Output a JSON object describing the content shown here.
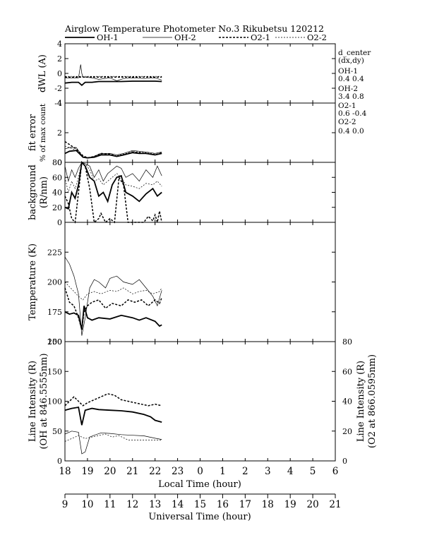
{
  "chart_data": {
    "type": "line",
    "title": "Airglow Temperature Photometer No.3  Rikubetsu    120212",
    "legend": [
      {
        "name": "OH-1",
        "color": "#000000",
        "style": "solid-thick"
      },
      {
        "name": "OH-2",
        "color": "#000000",
        "style": "solid-thin"
      },
      {
        "name": "O2-1",
        "color": "#000000",
        "style": "dashed-thick"
      },
      {
        "name": "O2-2",
        "color": "#000000",
        "style": "dashed-thin"
      }
    ],
    "x_axis": {
      "label": "Local Time (hour)",
      "range": [
        18,
        30
      ],
      "tick_labels": [
        "18",
        "19",
        "20",
        "21",
        "22",
        "23",
        "0",
        "1",
        "2",
        "3",
        "4",
        "5",
        "6"
      ]
    },
    "x2_axis": {
      "label": "Universal Time (hour)",
      "tick_labels": [
        "9",
        "10",
        "11",
        "12",
        "13",
        "14",
        "15",
        "16",
        "17",
        "18",
        "19",
        "20",
        "21"
      ]
    },
    "d_center": {
      "title": "d_center",
      "subtitle": "(dx,dy)",
      "items": [
        {
          "name": "OH-1",
          "value": "0.4   0.4"
        },
        {
          "name": "OH-2",
          "value": "3.4   0.8"
        },
        {
          "name": "O2-1",
          "value": "0.6   -0.4"
        },
        {
          "name": "O2-2",
          "value": "0.4   0.0"
        }
      ]
    },
    "panels": [
      {
        "id": "dwl",
        "ylabel": "dWL (A)",
        "ylim": [
          -4,
          4
        ],
        "yticks": [
          "4",
          "2",
          "0",
          "-2",
          "-4"
        ],
        "series": [
          {
            "name": "OH-1",
            "x": [
              18,
              18.3,
              18.6,
              18.75,
              18.9,
              19.2,
              19.5,
              20,
              20.5,
              21,
              21.5,
              22,
              22.3
            ],
            "y": [
              -1.3,
              -1.2,
              -1.2,
              -1.6,
              -1.2,
              -1.2,
              -1.1,
              -1.1,
              -1.1,
              -1.05,
              -1.05,
              -1.05,
              -1.1
            ]
          },
          {
            "name": "OH-2",
            "x": [
              18,
              18.3,
              18.6,
              18.7,
              18.75,
              18.8,
              18.9,
              19.2,
              19.5,
              20,
              20.3,
              20.6,
              21,
              21.5,
              22,
              22.3
            ],
            "y": [
              -0.6,
              -0.6,
              -0.6,
              1.2,
              0,
              -0.5,
              -0.5,
              -0.6,
              -0.8,
              -0.6,
              -1.0,
              -0.7,
              -0.6,
              -0.7,
              -0.6,
              -0.9
            ]
          },
          {
            "name": "O2-1",
            "x": [
              18,
              19,
              20,
              21,
              22,
              22.3
            ],
            "y": [
              -0.5,
              -0.5,
              -0.5,
              -0.5,
              -0.5,
              -0.5
            ]
          },
          {
            "name": "O2-2",
            "x": [
              18,
              19,
              20,
              21,
              22,
              22.3
            ],
            "y": [
              -0.4,
              -0.4,
              -0.4,
              -0.4,
              -0.4,
              -0.4
            ]
          }
        ]
      },
      {
        "id": "fit",
        "ylabel": "fit error",
        "ylabel2": "% of max count",
        "ylim": [
          0,
          4
        ],
        "yticks": [
          "4",
          "2",
          "0"
        ],
        "series": [
          {
            "name": "OH-1",
            "x": [
              18,
              18.2,
              18.5,
              18.8,
              19,
              19.3,
              19.6,
              20,
              20.3,
              20.6,
              21,
              21.3,
              21.6,
              22,
              22.3
            ],
            "y": [
              0.6,
              0.75,
              0.8,
              0.35,
              0.3,
              0.35,
              0.5,
              0.5,
              0.4,
              0.5,
              0.65,
              0.6,
              0.6,
              0.5,
              0.6
            ]
          },
          {
            "name": "OH-2",
            "x": [
              18,
              18.2,
              18.5,
              18.8,
              19,
              19.3,
              19.6,
              20,
              20.3,
              20.6,
              21,
              21.3,
              21.6,
              22,
              22.3
            ],
            "y": [
              0.9,
              1.0,
              1.0,
              0.35,
              0.3,
              0.4,
              0.6,
              0.6,
              0.5,
              0.6,
              0.8,
              0.75,
              0.7,
              0.6,
              0.7
            ]
          },
          {
            "name": "O2-1",
            "x": [
              18,
              18.2,
              18.5,
              18.8,
              19,
              19.3,
              19.6,
              20,
              20.3,
              20.6,
              21,
              21.3,
              21.6,
              22,
              22.3
            ],
            "y": [
              1.4,
              1.2,
              0.9,
              0.45,
              0.3,
              0.4,
              0.6,
              0.55,
              0.4,
              0.5,
              0.7,
              0.65,
              0.6,
              0.5,
              0.65
            ]
          },
          {
            "name": "O2-2",
            "x": [
              18,
              18.2,
              18.5,
              18.8,
              19,
              19.3,
              19.6,
              20,
              20.3,
              20.6,
              21,
              21.3,
              21.6,
              22,
              22.3
            ],
            "y": [
              1.1,
              1.0,
              0.8,
              0.4,
              0.3,
              0.35,
              0.55,
              0.5,
              0.45,
              0.55,
              0.75,
              0.7,
              0.65,
              0.55,
              0.6
            ]
          }
        ]
      },
      {
        "id": "bg",
        "ylabel": "background",
        "ylabel2": "(R/nm)",
        "ylim": [
          0,
          80
        ],
        "yticks": [
          "80",
          "60",
          "40",
          "20",
          "0"
        ],
        "series": [
          {
            "name": "OH-1",
            "x": [
              18,
              18.15,
              18.3,
              18.45,
              18.6,
              18.75,
              18.9,
              19.1,
              19.3,
              19.5,
              19.7,
              19.9,
              20.1,
              20.3,
              20.5,
              20.7,
              21,
              21.3,
              21.6,
              21.9,
              22.1,
              22.3
            ],
            "y": [
              20,
              18,
              40,
              32,
              50,
              80,
              75,
              60,
              55,
              35,
              40,
              28,
              50,
              60,
              62,
              40,
              35,
              28,
              38,
              45,
              35,
              40
            ]
          },
          {
            "name": "OH-2",
            "x": [
              18,
              18.15,
              18.3,
              18.45,
              18.6,
              18.75,
              18.9,
              19.1,
              19.3,
              19.5,
              19.7,
              19.9,
              20.1,
              20.3,
              20.5,
              20.7,
              21,
              21.3,
              21.6,
              21.9,
              22.1,
              22.3
            ],
            "y": [
              75,
              55,
              70,
              60,
              72,
              80,
              78,
              75,
              60,
              70,
              55,
              65,
              70,
              75,
              72,
              60,
              65,
              55,
              70,
              60,
              75,
              62
            ]
          },
          {
            "name": "O2-1",
            "x": [
              18,
              18.15,
              18.3,
              18.45,
              18.6,
              18.75,
              18.9,
              19.1,
              19.3,
              19.5,
              19.6,
              19.8,
              20,
              20.2,
              20.4,
              20.6,
              20.8,
              21,
              21.5,
              21.7,
              21.9,
              22,
              22.1,
              22.2,
              22.3
            ],
            "y": [
              35,
              25,
              5,
              0,
              40,
              80,
              75,
              45,
              0,
              5,
              12,
              0,
              5,
              0,
              60,
              50,
              0,
              0,
              0,
              8,
              2,
              10,
              0,
              15,
              0
            ]
          },
          {
            "name": "O2-2",
            "x": [
              18,
              18.15,
              18.3,
              18.45,
              18.6,
              18.75,
              18.9,
              19.1,
              19.3,
              19.5,
              19.7,
              19.9,
              20.1,
              20.3,
              20.5,
              20.7,
              21,
              21.3,
              21.6,
              21.9,
              22.1,
              22.3
            ],
            "y": [
              60,
              40,
              55,
              45,
              60,
              80,
              78,
              70,
              55,
              58,
              50,
              55,
              60,
              65,
              60,
              50,
              48,
              45,
              52,
              50,
              55,
              48
            ]
          }
        ]
      },
      {
        "id": "temp",
        "ylabel": "Temperature (K)",
        "ylim": [
          150,
          250
        ],
        "yticks": [
          "225",
          "200",
          "175",
          "150"
        ],
        "series": [
          {
            "name": "OH-1",
            "x": [
              18,
              18.2,
              18.4,
              18.6,
              18.75,
              18.85,
              19,
              19.2,
              19.5,
              20,
              20.5,
              21,
              21.3,
              21.6,
              22,
              22.2,
              22.3
            ],
            "y": [
              175,
              173,
              174,
              172,
              160,
              180,
              170,
              168,
              170,
              169,
              172,
              170,
              168,
              170,
              167,
              163,
              164
            ]
          },
          {
            "name": "OH-2",
            "x": [
              18,
              18.2,
              18.4,
              18.6,
              18.75,
              18.9,
              19.1,
              19.3,
              19.5,
              19.8,
              20,
              20.3,
              20.6,
              21,
              21.3,
              21.6,
              21.9,
              22.1,
              22.3
            ],
            "y": [
              221,
              215,
              205,
              190,
              155,
              170,
              195,
              202,
              200,
              195,
              203,
              205,
              200,
              198,
              202,
              195,
              188,
              180,
              193
            ]
          },
          {
            "name": "O2-1",
            "x": [
              18,
              18.2,
              18.4,
              18.6,
              18.75,
              18.85,
              19,
              19.2,
              19.5,
              19.8,
              20.1,
              20.5,
              20.8,
              21.1,
              21.4,
              21.7,
              22,
              22.2,
              22.3
            ],
            "y": [
              195,
              183,
              180,
              170,
              160,
              175,
              180,
              183,
              185,
              178,
              182,
              180,
              185,
              183,
              185,
              180,
              185,
              182,
              187
            ]
          },
          {
            "name": "O2-2",
            "x": [
              18,
              18.2,
              18.4,
              18.6,
              18.8,
              19,
              19.3,
              19.6,
              20,
              20.3,
              20.6,
              21,
              21.3,
              21.6,
              21.9,
              22.2,
              22.3
            ],
            "y": [
              200,
              196,
              192,
              188,
              185,
              190,
              192,
              190,
              193,
              192,
              195,
              190,
              192,
              193,
              190,
              192,
              195
            ]
          }
        ]
      },
      {
        "id": "int",
        "ylabel": "Line Intensity (R)",
        "ylabel2": "(OH at 846.5555nm)",
        "y2label": "Line Intensity (R)",
        "y2label2": "(O2 at 866.0595nm)",
        "ylim": [
          0,
          200
        ],
        "yticks": [
          "200",
          "150",
          "100",
          "50",
          "0"
        ],
        "y2lim": [
          0,
          80
        ],
        "y2ticks": [
          "80",
          "60",
          "40",
          "20",
          "0"
        ],
        "series": [
          {
            "name": "OH-1",
            "x": [
              18,
              18.3,
              18.6,
              18.75,
              18.9,
              19.2,
              19.5,
              20,
              20.5,
              21,
              21.5,
              21.8,
              22,
              22.3
            ],
            "y": [
              85,
              88,
              90,
              60,
              85,
              88,
              86,
              85,
              84,
              82,
              78,
              74,
              68,
              65
            ]
          },
          {
            "name": "OH-2",
            "x": [
              18,
              18.3,
              18.6,
              18.75,
              18.9,
              19.1,
              19.3,
              19.6,
              20,
              20.5,
              21,
              21.5,
              22,
              22.3
            ],
            "y": [
              45,
              50,
              48,
              12,
              15,
              40,
              43,
              47,
              46,
              44,
              43,
              42,
              38,
              36
            ]
          },
          {
            "name": "O2-1",
            "x": [
              18,
              18.2,
              18.4,
              18.6,
              18.8,
              19,
              19.3,
              19.6,
              19.9,
              20.2,
              20.5,
              20.8,
              21.1,
              21.4,
              21.7,
              22,
              22.3
            ],
            "y": [
              37,
              40,
              43,
              40,
              37,
              39,
              41,
              43,
              45,
              44,
              41,
              40,
              39,
              38,
              37,
              38,
              37
            ],
            "axis": "y2"
          },
          {
            "name": "O2-2",
            "x": [
              18,
              18.3,
              18.6,
              18.9,
              19.2,
              19.5,
              19.8,
              20.1,
              20.4,
              20.8,
              21.1,
              21.5,
              22,
              22.3
            ],
            "y": [
              13,
              15,
              17,
              15,
              16,
              17,
              18,
              16,
              17,
              14,
              14,
              14,
              14,
              14
            ],
            "axis": "y2"
          }
        ]
      }
    ]
  }
}
